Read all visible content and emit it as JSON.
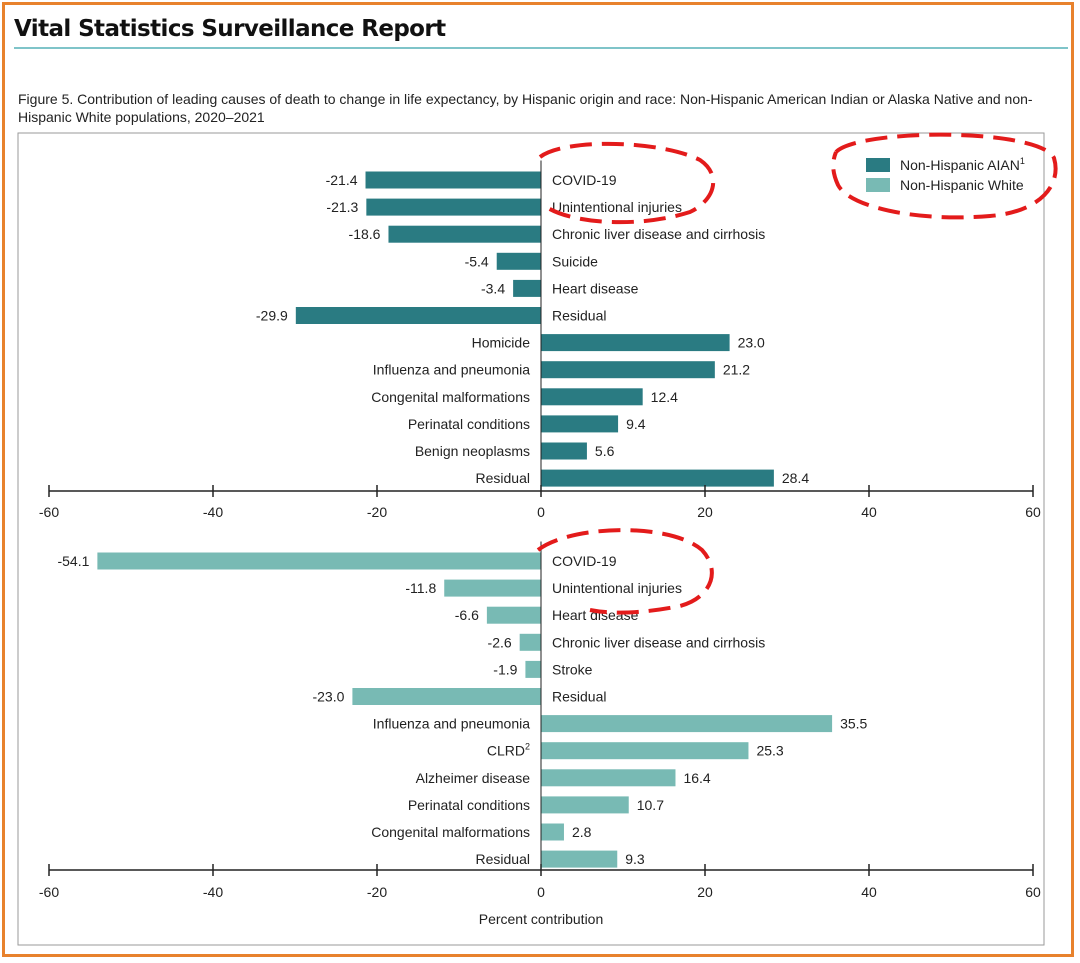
{
  "report_title": "Vital Statistics Surveillance Report",
  "figure_caption": "Figure 5. Contribution of leading causes of death to change in life expectancy, by Hispanic origin and race: Non-Hispanic American Indian or Alaska Native and non-Hispanic White populations, 2020–2021",
  "colors": {
    "aian": "#2a7b82",
    "white": "#78bab4",
    "border": "#e8822d",
    "annotation": "#e31b1b"
  },
  "chart_data": [
    {
      "type": "bar",
      "orientation": "horizontal",
      "series_name": "Non-Hispanic AIAN",
      "series_sup": "1",
      "color": "#2a7b82",
      "categories": [
        "COVID-19",
        "Unintentional injuries",
        "Chronic liver disease and cirrhosis",
        "Suicide",
        "Heart disease",
        "Residual",
        "Homicide",
        "Influenza and pneumonia",
        "Congenital malformations",
        "Perinatal conditions",
        "Benign neoplasms",
        "Residual"
      ],
      "category_sups": [
        "",
        "",
        "",
        "",
        "",
        "",
        "",
        "",
        "",
        "",
        "",
        ""
      ],
      "values": [
        -21.4,
        -21.3,
        -18.6,
        -5.4,
        -3.4,
        -29.9,
        23.0,
        21.2,
        12.4,
        9.4,
        5.6,
        28.4
      ],
      "value_labels": [
        "-21.4",
        "-21.3",
        "-18.6",
        "-5.4",
        "-3.4",
        "-29.9",
        "23.0",
        "21.2",
        "12.4",
        "9.4",
        "5.6",
        "28.4"
      ],
      "xlim": [
        -60,
        60
      ],
      "ticks": [
        "-60",
        "-40",
        "-20",
        "0",
        "20",
        "40",
        "60"
      ],
      "xlabel": ""
    },
    {
      "type": "bar",
      "orientation": "horizontal",
      "series_name": "Non-Hispanic White",
      "series_sup": "",
      "color": "#78bab4",
      "categories": [
        "COVID-19",
        "Unintentional injuries",
        "Heart disease",
        "Chronic liver disease and cirrhosis",
        "Stroke",
        "Residual",
        "Influenza and pneumonia",
        "CLRD",
        "Alzheimer disease",
        "Perinatal conditions",
        "Congenital malformations",
        "Residual"
      ],
      "category_sups": [
        "",
        "",
        "",
        "",
        "",
        "",
        "",
        "2",
        "",
        "",
        "",
        ""
      ],
      "values": [
        -54.1,
        -11.8,
        -6.6,
        -2.6,
        -1.9,
        -23.0,
        35.5,
        25.3,
        16.4,
        10.7,
        2.8,
        9.3
      ],
      "value_labels": [
        "-54.1",
        "-11.8",
        "-6.6",
        "-2.6",
        "-1.9",
        "-23.0",
        "35.5",
        "25.3",
        "16.4",
        "10.7",
        "2.8",
        "9.3"
      ],
      "xlim": [
        -60,
        60
      ],
      "ticks": [
        "-60",
        "-40",
        "-20",
        "0",
        "20",
        "40",
        "60"
      ],
      "xlabel": "Percent contribution"
    }
  ]
}
